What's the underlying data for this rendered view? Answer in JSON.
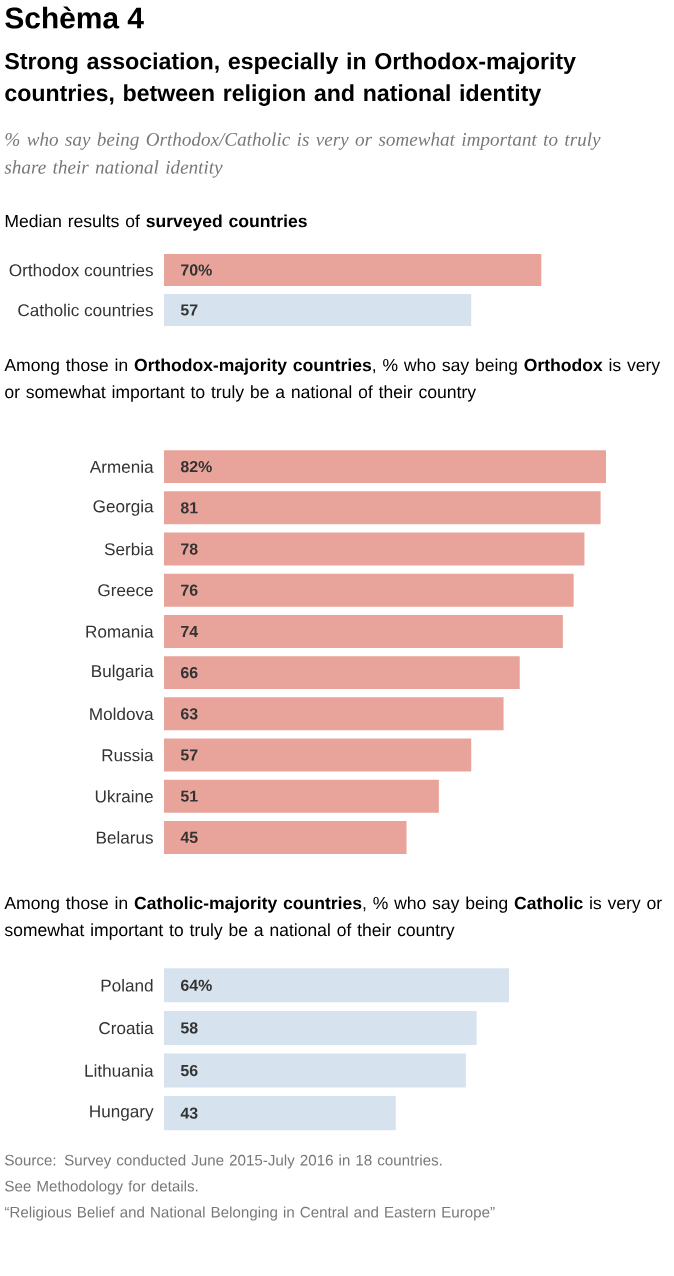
{
  "chart_data": [
    {
      "type": "other",
      "title": "Schèma 4",
      "subtitle": "Strong association, especially in Orthodox-majority countries, between religion and national identity",
      "annotations": [
        "% who say being Orthodox/Catholic is very or somewhat important to truly share their national identity"
      ]
    },
    {
      "type": "bar",
      "orientation": "horizontal",
      "title": "Median results of **surveyed countries**",
      "categories": [
        "Orthodox countries",
        "Catholic countries"
      ],
      "values": [
        70,
        57
      ],
      "colors": [
        "#e8a49a",
        "#d6e3ee"
      ],
      "value_labels": [
        "70%",
        "57"
      ]
    },
    {
      "type": "bar",
      "orientation": "horizontal",
      "title": "Among those in **Orthodox-majority countries**, % who say being **Orthodox** is very or somewhat important to truly be a national of their country",
      "categories": [
        "Armenia",
        "Georgia",
        "Serbia",
        "Greece",
        "Romania",
        "Bulgaria",
        "Moldova",
        "Russia",
        "Ukraine",
        "Belarus"
      ],
      "values": [
        82,
        81,
        78,
        76,
        74,
        66,
        63,
        57,
        51,
        45
      ],
      "color": "#e8a49a",
      "value_labels": [
        "82%",
        "81",
        "78",
        "76",
        "74",
        "66",
        "63",
        "57",
        "51",
        "45"
      ]
    },
    {
      "type": "bar",
      "orientation": "horizontal",
      "title": "Among those in **Catholic-majority countries**, % who say being **Catholic** is very or somewhat important to truly be a national of their country",
      "categories": [
        "Poland",
        "Croatia",
        "Lithuania",
        "Hungary"
      ],
      "values": [
        64,
        58,
        56,
        43
      ],
      "color": "#d6e3ee",
      "value_labels": [
        "64%",
        "58",
        "56",
        "43"
      ],
      "annotations": [
        "Source: Survey conducted June 2015-July 2016 in 18 countries.",
        "See Methodology for details.",
        "“Religious Belief and National Belonging in Central and Eastern Europe”"
      ]
    }
  ]
}
